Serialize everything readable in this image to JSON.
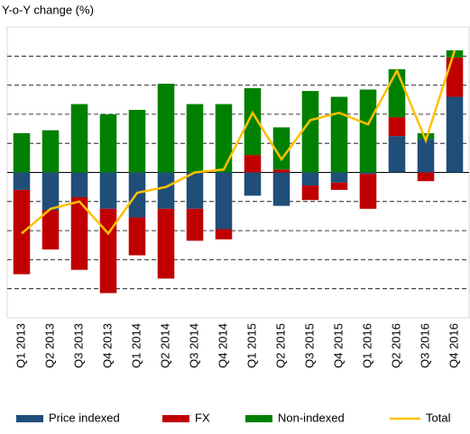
{
  "chart_data": {
    "type": "stacked-bar-line",
    "y_label": "Y-o-Y change (%)",
    "categories": [
      "Q1 2013",
      "Q2 2013",
      "Q3 2013",
      "Q4 2013",
      "Q1 2014",
      "Q2 2014",
      "Q3 2014",
      "Q4 2014",
      "Q1 2015",
      "Q2 2015",
      "Q3 2015",
      "Q4 2015",
      "Q1 2016",
      "Q2 2016",
      "Q3 2016",
      "Q4 2016"
    ],
    "series": [
      {
        "name": "Price indexed",
        "color": "#1f4e79",
        "values": [
          -0.6,
          -1.3,
          -0.85,
          -1.25,
          -1.55,
          -1.25,
          -1.25,
          -1.95,
          -0.8,
          -1.15,
          -0.45,
          -0.35,
          -0.05,
          1.25,
          1.15,
          2.6
        ]
      },
      {
        "name": "FX",
        "color": "#c00000",
        "values": [
          -2.9,
          -1.35,
          -2.5,
          -2.9,
          -1.3,
          -2.4,
          -1.1,
          -0.35,
          0.6,
          0.1,
          -0.5,
          -0.25,
          -1.2,
          0.65,
          -0.3,
          1.35
        ]
      },
      {
        "name": "Non-indexed",
        "color": "#008000",
        "values": [
          1.35,
          1.45,
          2.35,
          2.0,
          2.15,
          3.05,
          2.35,
          2.35,
          2.3,
          1.45,
          2.8,
          2.6,
          2.85,
          1.65,
          0.2,
          0.25
        ]
      },
      {
        "name": "Total",
        "color": "#ffc000",
        "line": true,
        "values": [
          -2.1,
          -1.25,
          -1.0,
          -2.1,
          -0.7,
          -0.5,
          0,
          0.1,
          2.05,
          0.45,
          1.8,
          2.05,
          1.65,
          3.5,
          1.1,
          4.2
        ]
      }
    ],
    "ylim": [
      -5,
      5
    ],
    "yticks": [
      -4,
      -3,
      -2,
      -1,
      0,
      1,
      2,
      3,
      4
    ],
    "grid": true
  }
}
